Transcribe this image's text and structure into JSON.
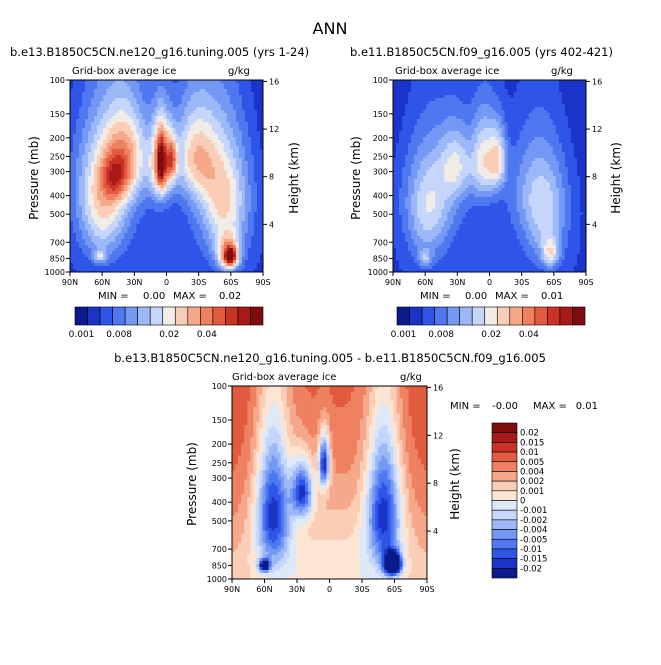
{
  "page": {
    "title": "ANN"
  },
  "common": {
    "ylabel": "Pressure (mb)",
    "y2label": "Height (km)",
    "pressure_ticks": [
      "100",
      "150",
      "200",
      "250",
      "300",
      "400",
      "500",
      "700",
      "850",
      "1000"
    ],
    "height_ticks": [
      "16",
      "12",
      "8",
      "4"
    ],
    "lat_ticks": [
      "90N",
      "60N",
      "30N",
      "0",
      "30S",
      "60S",
      "90S"
    ]
  },
  "chart_data": [
    {
      "id": "panel1",
      "type": "contour",
      "title": "b.e13.B1850C5CN.ne120_g16.tuning.005 (yrs 1-24)",
      "subtitle": "Grid-box average ice",
      "units": "g/kg",
      "min_label": "MIN =",
      "min": "0.00",
      "max_label": "MAX =",
      "max": "0.02",
      "colorbar": {
        "tick_labels": [
          "0.001",
          "0.008",
          "0.02",
          "0.04"
        ],
        "colors": [
          "#0b1a8c",
          "#1b34c8",
          "#2e55e8",
          "#4f78f0",
          "#7499f5",
          "#9cb8f7",
          "#c5d6fa",
          "#f2ece6",
          "#f9cdb6",
          "#f6a98a",
          "#ee8161",
          "#e25a3f",
          "#c93224",
          "#a81a17",
          "#7f0d0d"
        ]
      },
      "blobs": [
        {
          "lat": 0,
          "p": 1000,
          "w": 180,
          "h": 1000,
          "v": 0.12
        },
        {
          "lat": 55,
          "p": 310,
          "w": 32,
          "h": 240,
          "v": 0.35
        },
        {
          "lat": -48,
          "p": 310,
          "w": 30,
          "h": 240,
          "v": 0.32
        },
        {
          "lat": 60,
          "p": 550,
          "w": 22,
          "h": 300,
          "v": 0.3
        },
        {
          "lat": -55,
          "p": 560,
          "w": 22,
          "h": 300,
          "v": 0.3
        },
        {
          "lat": 35,
          "p": 240,
          "w": 20,
          "h": 140,
          "v": 0.35
        },
        {
          "lat": -25,
          "p": 240,
          "w": 20,
          "h": 140,
          "v": 0.35
        },
        {
          "lat": 48,
          "p": 320,
          "w": 12,
          "h": 90,
          "v": 0.25
        },
        {
          "lat": 5,
          "p": 270,
          "w": 10,
          "h": 140,
          "v": 0.55
        },
        {
          "lat": 5,
          "p": 265,
          "w": 4,
          "h": 80,
          "v": 0.42
        },
        {
          "lat": -5,
          "p": 260,
          "w": 5,
          "h": 70,
          "v": 0.4
        },
        {
          "lat": -58,
          "p": 820,
          "w": 10,
          "h": 160,
          "v": 0.55
        },
        {
          "lat": -60,
          "p": 830,
          "w": 5,
          "h": 80,
          "v": 0.45
        },
        {
          "lat": 62,
          "p": 830,
          "w": 6,
          "h": 60,
          "v": 0.25
        }
      ]
    },
    {
      "id": "panel2",
      "type": "contour",
      "title": "b.e11.B1850C5CN.f09_g16.005 (yrs 402-421)",
      "subtitle": "Grid-box average ice",
      "units": "g/kg",
      "min_label": "MIN =",
      "min": "0.00",
      "max_label": "MAX =",
      "max": "0.01",
      "colorbar": {
        "tick_labels": [
          "0.001",
          "0.008",
          "0.02",
          "0.04"
        ],
        "colors": [
          "#0b1a8c",
          "#1b34c8",
          "#2e55e8",
          "#4f78f0",
          "#7499f5",
          "#9cb8f7",
          "#c5d6fa",
          "#f2ece6",
          "#f9cdb6",
          "#f6a98a",
          "#ee8161",
          "#e25a3f",
          "#c93224",
          "#a81a17",
          "#7f0d0d"
        ]
      },
      "blobs": [
        {
          "lat": 0,
          "p": 1000,
          "w": 180,
          "h": 1000,
          "v": 0.12
        },
        {
          "lat": 52,
          "p": 360,
          "w": 30,
          "h": 240,
          "v": 0.25
        },
        {
          "lat": -45,
          "p": 360,
          "w": 28,
          "h": 240,
          "v": 0.25
        },
        {
          "lat": 58,
          "p": 580,
          "w": 20,
          "h": 300,
          "v": 0.22
        },
        {
          "lat": -52,
          "p": 600,
          "w": 20,
          "h": 300,
          "v": 0.22
        },
        {
          "lat": 5,
          "p": 260,
          "w": 12,
          "h": 140,
          "v": 0.4
        },
        {
          "lat": -8,
          "p": 260,
          "w": 8,
          "h": 100,
          "v": 0.35
        },
        {
          "lat": 30,
          "p": 270,
          "w": 15,
          "h": 120,
          "v": 0.28
        },
        {
          "lat": -57,
          "p": 800,
          "w": 8,
          "h": 140,
          "v": 0.3
        },
        {
          "lat": 60,
          "p": 850,
          "w": 6,
          "h": 80,
          "v": 0.22
        }
      ]
    },
    {
      "id": "panel3",
      "type": "contour",
      "title": "b.e13.B1850C5CN.ne120_g16.tuning.005 - b.e11.B1850C5CN.f09_g16.005",
      "subtitle": "Grid-box average ice",
      "units": "g/kg",
      "min_label": "MIN =",
      "min": "-0.00",
      "max_label": "MAX =",
      "max": "0.01",
      "colorbar": {
        "tick_labels": [
          "0.02",
          "0.015",
          "0.01",
          "0.005",
          "0.004",
          "0.002",
          "0.001",
          "0",
          "-0.001",
          "-0.002",
          "-0.004",
          "-0.005",
          "-0.01",
          "-0.015",
          "-0.02"
        ],
        "colors": [
          "#7f0d0d",
          "#a81a17",
          "#c93224",
          "#e25a3f",
          "#ee8161",
          "#f6a98a",
          "#f9cdb6",
          "#fde5d3",
          "#dde8f8",
          "#c5d6fa",
          "#9cb8f7",
          "#7499f5",
          "#4f78f0",
          "#2e55e8",
          "#1b34c8",
          "#0b1a8c"
        ]
      },
      "blobs": [
        {
          "lat": 0,
          "p": 1000,
          "w": 180,
          "h": 1000,
          "v": 0.5
        },
        {
          "lat": 52,
          "p": 430,
          "w": 16,
          "h": 360,
          "v": 0.6
        },
        {
          "lat": -50,
          "p": 430,
          "w": 16,
          "h": 360,
          "v": 0.6
        },
        {
          "lat": 5,
          "p": 250,
          "w": 5,
          "h": 80,
          "v": 0.66
        },
        {
          "lat": -58,
          "p": 830,
          "w": 8,
          "h": 120,
          "v": 0.8
        },
        {
          "lat": -60,
          "p": 840,
          "w": 4,
          "h": 60,
          "v": 0.9
        },
        {
          "lat": 60,
          "p": 850,
          "w": 5,
          "h": 60,
          "v": 0.68
        },
        {
          "lat": 25,
          "p": 350,
          "w": 10,
          "h": 120,
          "v": 0.58
        }
      ]
    }
  ]
}
